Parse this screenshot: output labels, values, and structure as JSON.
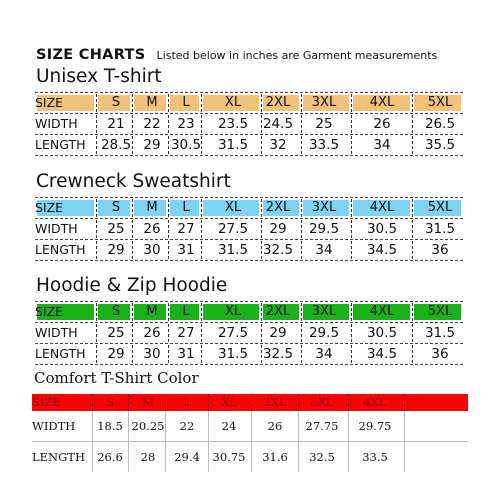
{
  "header": {
    "title": "SIZE CHARTS",
    "subtitle": "Listed below in inches are Garment measurements"
  },
  "sections": [
    {
      "title": "Unisex T-shirt",
      "bar_color": "#f2c27a",
      "size_label": "SIZE",
      "sizes": [
        "S",
        "M",
        "L",
        "XL",
        "2XL",
        "3XL",
        "4XL",
        "5XL"
      ],
      "rows": [
        {
          "label": "WIDTH",
          "values": [
            "21",
            "22",
            "23",
            "23.5",
            "24.5",
            "25",
            "26",
            "26.5"
          ]
        },
        {
          "label": "LENGTH",
          "values": [
            "28.5",
            "29",
            "30.5",
            "31.5",
            "32",
            "33.5",
            "34",
            "35.5"
          ]
        }
      ]
    },
    {
      "title": "Crewneck Sweatshirt",
      "bar_color": "#7fd3f2",
      "size_label": "SIZE",
      "sizes": [
        "S",
        "M",
        "L",
        "XL",
        "2XL",
        "3XL",
        "4XL",
        "5XL"
      ],
      "rows": [
        {
          "label": "WIDTH",
          "values": [
            "25",
            "26",
            "27",
            "27.5",
            "29",
            "29.5",
            "30.5",
            "31.5"
          ]
        },
        {
          "label": "LENGTH",
          "values": [
            "29",
            "30",
            "31",
            "31.5",
            "32.5",
            "34",
            "34.5",
            "36"
          ]
        }
      ]
    },
    {
      "title": "Hoodie & Zip Hoodie",
      "bar_color": "#19b319",
      "size_label": "SIZE",
      "sizes": [
        "S",
        "M",
        "L",
        "XL",
        "2XL",
        "3XL",
        "4XL",
        "5XL"
      ],
      "rows": [
        {
          "label": "WIDTH",
          "values": [
            "25",
            "26",
            "27",
            "27.5",
            "29",
            "29.5",
            "30.5",
            "31.5"
          ]
        },
        {
          "label": "LENGTH",
          "values": [
            "29",
            "30",
            "31",
            "31.5",
            "32.5",
            "34",
            "34.5",
            "36"
          ]
        }
      ]
    }
  ],
  "comfort": {
    "title": "Comfort T-Shirt Color",
    "bar_color": "#ff0000",
    "size_label": "SIZE",
    "sizes": [
      "S",
      "M",
      "L",
      "XL",
      "2XL",
      "3XL",
      "4XL"
    ],
    "rows": [
      {
        "label": "WIDTH",
        "values": [
          "18.5",
          "20.25",
          "22",
          "24",
          "26",
          "27.75",
          "29.75"
        ]
      },
      {
        "label": "LENGTH",
        "values": [
          "26.6",
          "28",
          "29.4",
          "30.75",
          "31.6",
          "32.5",
          "33.5"
        ]
      }
    ]
  }
}
